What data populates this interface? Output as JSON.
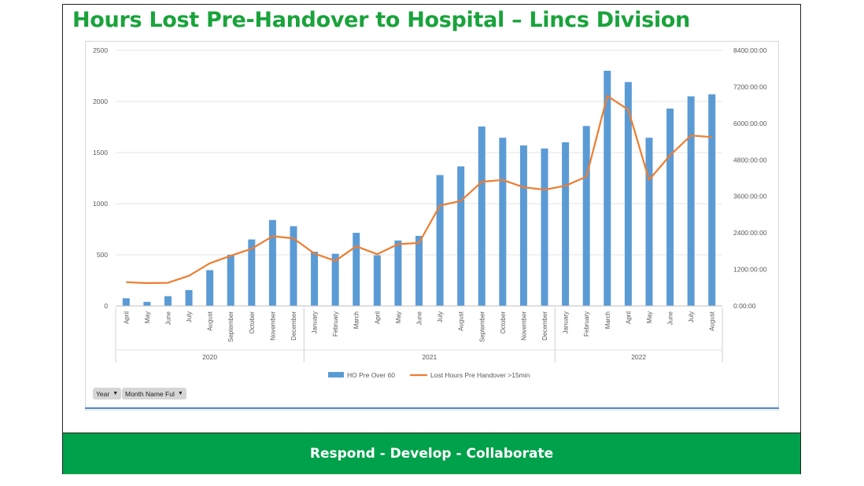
{
  "title": "Hours Lost Pre-Handover to Hospital – Lincs Division",
  "footer": "Respond - Develop - Collaborate",
  "filters": {
    "year": "Year",
    "month": "Month Name Ful"
  },
  "colors": {
    "title": "#1aa33c",
    "footer": "#00a14b",
    "bars": "#5b9bd5",
    "line": "#ed7d31"
  },
  "chart_data": {
    "type": "bar",
    "categories": [
      "April",
      "May",
      "June",
      "July",
      "August",
      "September",
      "October",
      "November",
      "December",
      "January",
      "February",
      "March",
      "April",
      "May",
      "June",
      "July",
      "August",
      "September",
      "October",
      "November",
      "December",
      "January",
      "February",
      "March",
      "April",
      "May",
      "June",
      "July",
      "August"
    ],
    "years": [
      {
        "label": "2020",
        "start": 0,
        "end": 8
      },
      {
        "label": "2021",
        "start": 9,
        "end": 20
      },
      {
        "label": "2022",
        "start": 21,
        "end": 28
      }
    ],
    "series": [
      {
        "name": "HO Pre Over 60",
        "kind": "bar",
        "axis": "left",
        "values": [
          75,
          40,
          95,
          155,
          350,
          500,
          650,
          840,
          780,
          530,
          510,
          715,
          495,
          640,
          685,
          1280,
          1365,
          1755,
          1645,
          1570,
          1540,
          1600,
          1760,
          2300,
          2190,
          1645,
          1930,
          2050,
          2070
        ]
      },
      {
        "name": "Lost Hours Pre Handover >15min",
        "kind": "line",
        "axis": "right",
        "values": [
          780,
          750,
          760,
          990,
          1400,
          1650,
          1880,
          2290,
          2220,
          1720,
          1480,
          1960,
          1700,
          2030,
          2070,
          3300,
          3450,
          4080,
          4140,
          3900,
          3820,
          3950,
          4250,
          6900,
          6450,
          4140,
          4950,
          5600,
          5550
        ]
      }
    ],
    "y_left": {
      "min": 0,
      "max": 2500,
      "ticks": [
        "0",
        "500",
        "1000",
        "1500",
        "2000",
        "2500"
      ]
    },
    "y_right": {
      "min": 0,
      "max": 8400,
      "ticks": [
        "0:00:00",
        "1200:00:00",
        "2400:00:00",
        "3600:00:00",
        "4800:00:00",
        "6000:00:00",
        "7200:00:00",
        "8400:00:00"
      ]
    },
    "grid": true,
    "legend": "bottom"
  }
}
